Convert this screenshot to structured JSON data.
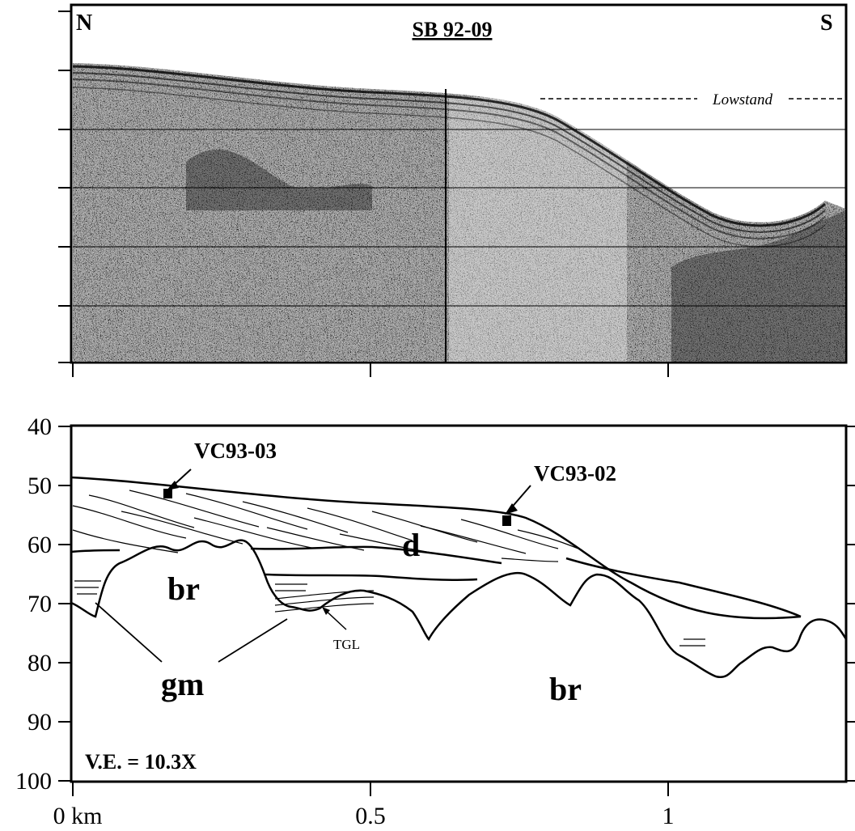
{
  "top_panel": {
    "title": "SB 92-09",
    "label_left": "N",
    "label_right": "S",
    "annotation": "Lowstand"
  },
  "bottom_panel": {
    "y_ticks": [
      "40",
      "50",
      "60",
      "70",
      "80",
      "90",
      "100"
    ],
    "x_ticks": [
      "0 km",
      "0.5",
      "1"
    ],
    "units": [
      "br",
      "d",
      "br",
      "gm"
    ],
    "cores": [
      "VC93-03",
      "VC93-02"
    ],
    "small_label": "TGL",
    "ve_note": "V.E. = 10.3X"
  }
}
